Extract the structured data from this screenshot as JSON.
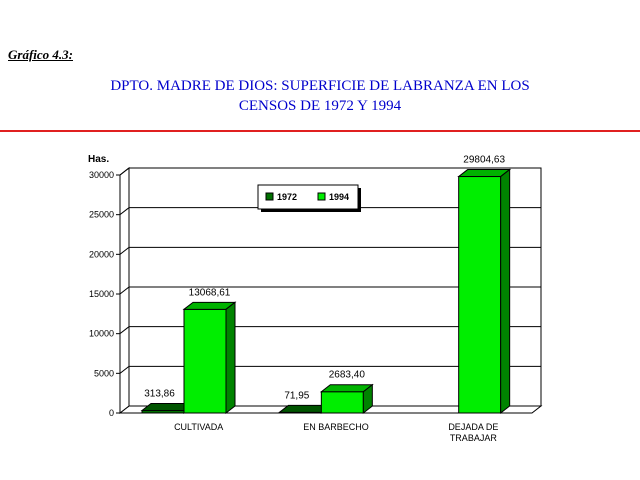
{
  "figure_label": "Gráfico 4.3:",
  "title_line1": "DPTO. MADRE DE DIOS: SUPERFICIE DE LABRANZA EN LOS",
  "title_line2": "CENSOS DE 1972 Y 1994",
  "colors": {
    "title": "#0000cc",
    "rule": "#e02020",
    "s1972": "#007000",
    "s1994": "#00ee00"
  },
  "chart_data": {
    "type": "bar",
    "ylabel": "Has.",
    "ylim": [
      0,
      30000
    ],
    "yticks": [
      0,
      5000,
      10000,
      15000,
      20000,
      25000,
      30000
    ],
    "grid": true,
    "legend_position": "top-center",
    "categories": [
      [
        "CULTIVADA"
      ],
      [
        "EN BARBECHO"
      ],
      [
        "DEJADA DE",
        "TRABAJAR"
      ]
    ],
    "series": [
      {
        "name": "1972",
        "values": [
          313.86,
          71.95,
          0
        ],
        "labels": [
          "313,86",
          "71,95",
          ""
        ]
      },
      {
        "name": "1994",
        "values": [
          13068.61,
          2683.4,
          29804.63
        ],
        "labels": [
          "13068,61",
          "2683,40",
          "29804,63"
        ]
      }
    ]
  }
}
